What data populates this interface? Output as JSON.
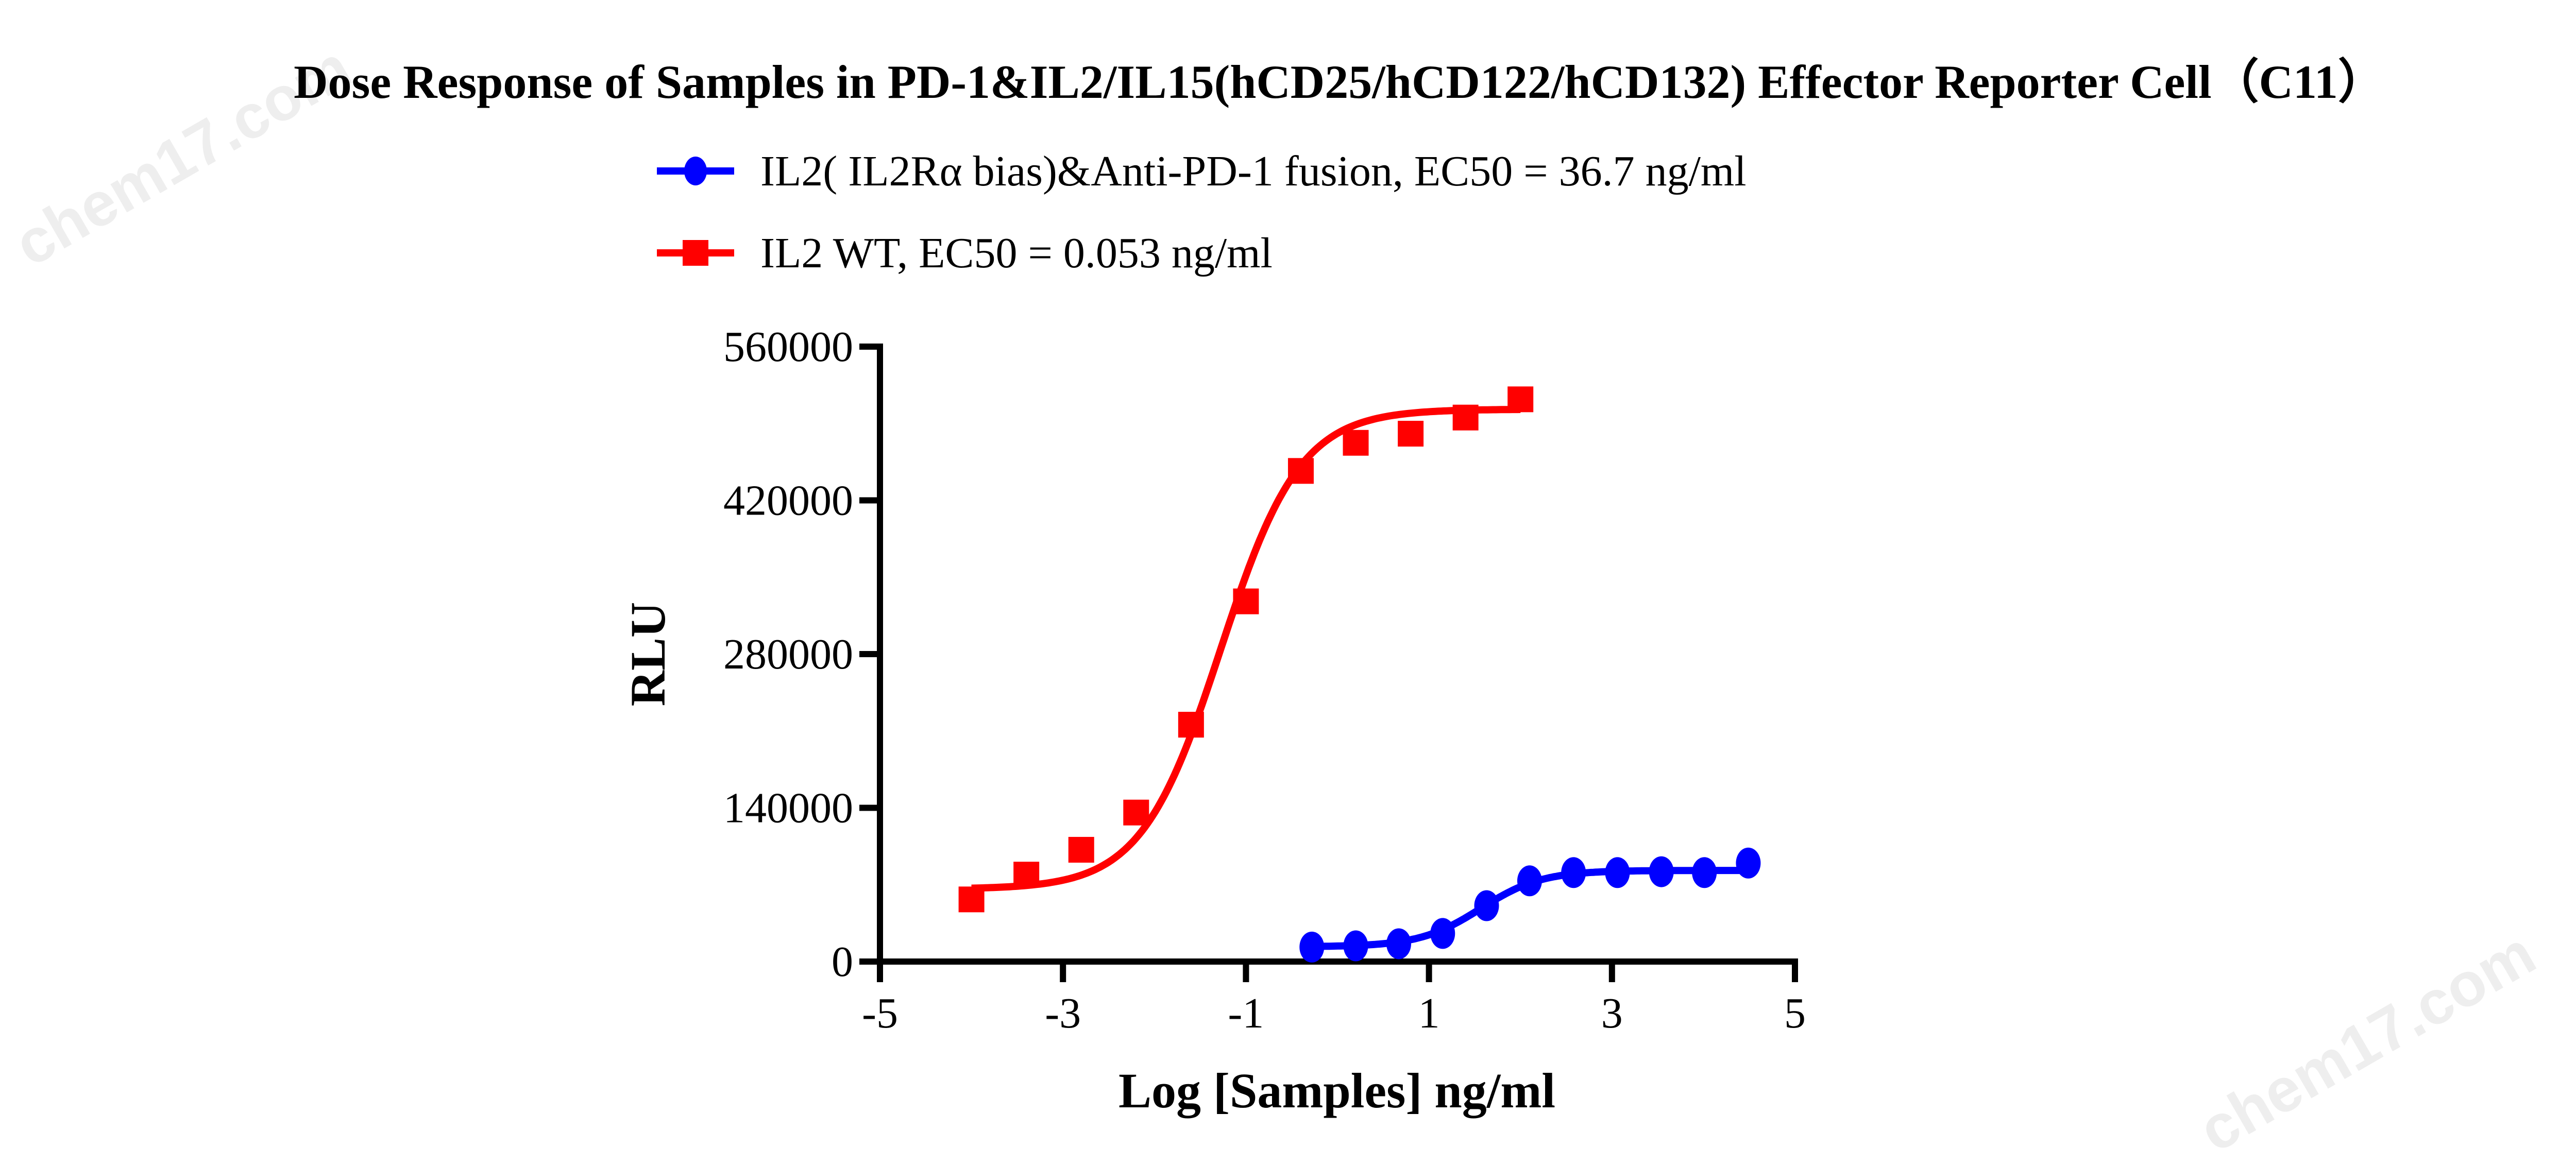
{
  "watermark": "chem17.com",
  "chart_data": {
    "type": "scatter",
    "title": "Dose Response of Samples in PD-1&IL2/IL15(hCD25/hCD122/hCD132) Effector Reporter Cell（C11）",
    "xlabel": "Log [Samples] ng/ml",
    "ylabel": "RLU",
    "xlim": [
      -5,
      5
    ],
    "ylim": [
      0,
      560000
    ],
    "xticks": [
      "-5",
      "-3",
      "-1",
      "1",
      "3",
      "5"
    ],
    "xtick_values": [
      -5,
      -3,
      -1,
      1,
      3,
      5
    ],
    "yticks": [
      "0",
      "140000",
      "280000",
      "420000",
      "560000"
    ],
    "ytick_values": [
      0,
      140000,
      280000,
      420000,
      560000
    ],
    "grid": false,
    "legend_position": "top",
    "series": [
      {
        "name": "IL2( IL2Rα bias)&Anti-PD-1 fusion, EC50 = 36.7 ng/ml",
        "color": "#0000ff",
        "marker": "circle",
        "x": [
          -0.28,
          0.2,
          0.67,
          1.15,
          1.63,
          2.1,
          2.58,
          3.06,
          3.54,
          4.01,
          4.49
        ],
        "y": [
          13200,
          14300,
          16200,
          25600,
          50900,
          73500,
          81000,
          81000,
          81800,
          81000,
          89700
        ],
        "fit": {
          "bottom": 13500,
          "top": 83000,
          "log_ec50": 1.565,
          "hill": 1.3
        }
      },
      {
        "name": "IL2 WT, EC50 = 0.053 ng/ml",
        "color": "#ff0000",
        "marker": "square",
        "x": [
          -4.0,
          -3.4,
          -2.8,
          -2.2,
          -1.6,
          -1.0,
          -0.4,
          0.2,
          0.8,
          1.4,
          2.0
        ],
        "y": [
          56600,
          79200,
          101800,
          135700,
          215700,
          328000,
          446800,
          472400,
          480700,
          495400,
          512000
        ],
        "fit": {
          "bottom": 66000,
          "top": 503000,
          "log_ec50": -1.276,
          "hill": 1.0
        }
      }
    ]
  }
}
